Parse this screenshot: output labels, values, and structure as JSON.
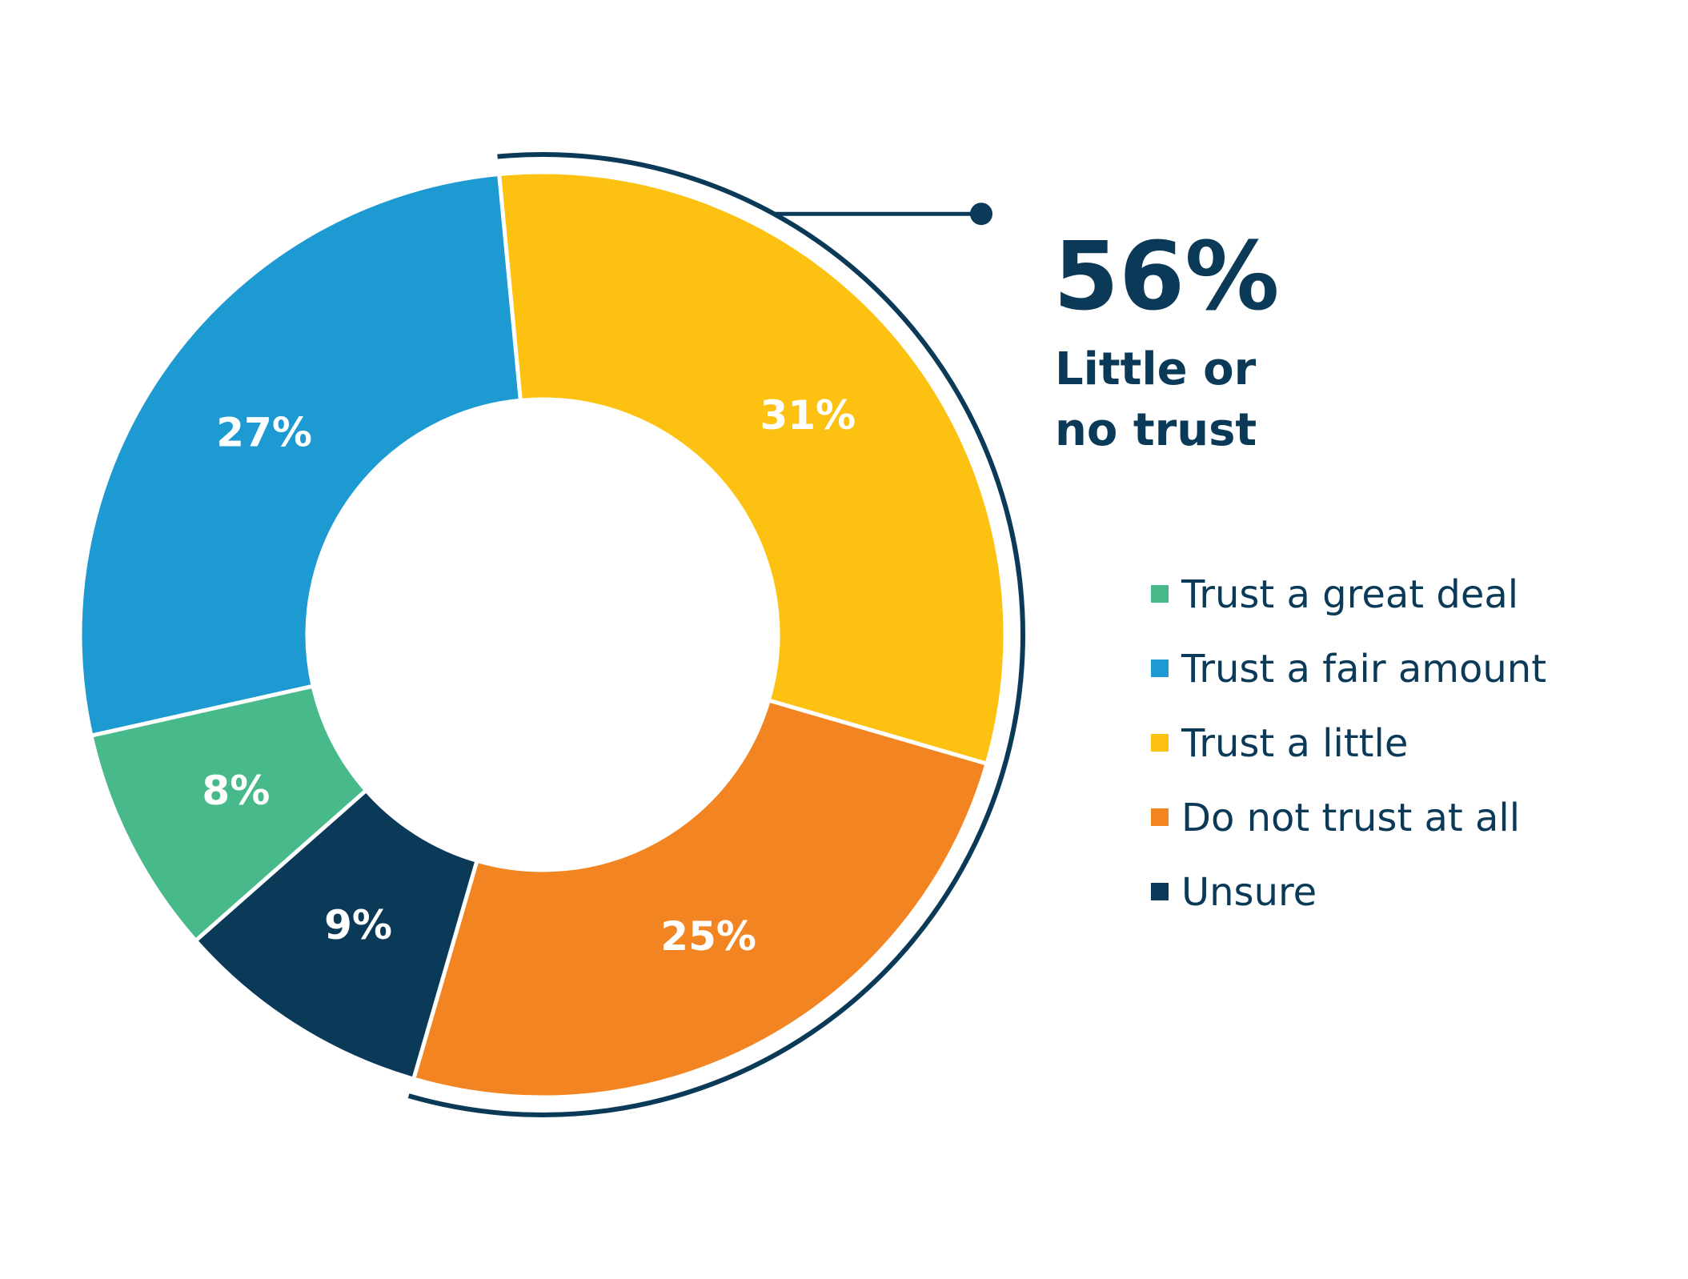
{
  "chart_data": {
    "type": "pie",
    "variant": "donut",
    "categories": [
      "Trust a great deal",
      "Trust a fair amount",
      "Trust a little",
      "Do not trust at all",
      "Unsure"
    ],
    "values": [
      8,
      27,
      31,
      25,
      9
    ],
    "value_labels": [
      "8%",
      "27%",
      "31%",
      "25%",
      "9%"
    ],
    "colors": [
      "#48b98a",
      "#1d9ad1",
      "#fdc211",
      "#f38422",
      "#0b3a58"
    ],
    "legend_placement": "right",
    "callout": {
      "value": "56%",
      "lines": [
        "Little or",
        "no trust"
      ],
      "groups": [
        "Trust a little",
        "Do not trust at all"
      ],
      "color": "#0b3a58"
    }
  }
}
